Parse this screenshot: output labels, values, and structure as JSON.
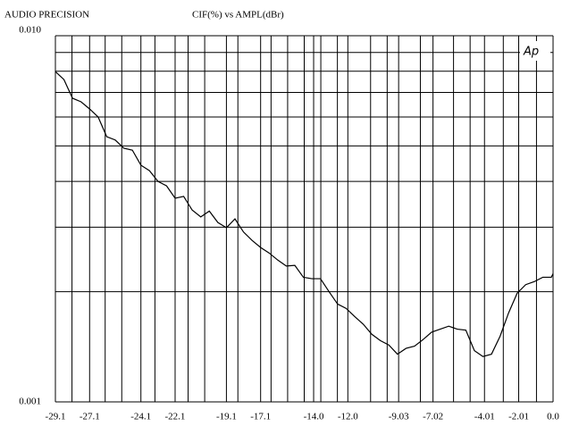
{
  "chart_data": {
    "type": "line",
    "title": "AUDIO PRECISION",
    "subtitle": "CIF(%)   vs   AMPL(dBr)",
    "logo": "Ap",
    "x": [
      -29.1,
      -28.6,
      -28.1,
      -27.6,
      -27.1,
      -26.6,
      -26.1,
      -25.6,
      -25.1,
      -24.6,
      -24.1,
      -23.6,
      -23.1,
      -22.6,
      -22.1,
      -21.6,
      -21.1,
      -20.6,
      -20.1,
      -19.6,
      -19.1,
      -18.6,
      -18.1,
      -17.6,
      -17.1,
      -16.6,
      -16.1,
      -15.6,
      -15.1,
      -14.6,
      -14.1,
      -13.6,
      -13.1,
      -12.6,
      -12.1,
      -11.6,
      -11.1,
      -10.6,
      -10.1,
      -9.6,
      -9.1,
      -8.6,
      -8.1,
      -7.6,
      -7.1,
      -6.6,
      -6.1,
      -5.6,
      -5.1,
      -4.6,
      -4.1,
      -3.6,
      -3.1,
      -2.6,
      -2.1,
      -1.6,
      -1.1,
      -0.6,
      -0.1,
      0.0
    ],
    "series": [
      {
        "color": "#000000",
        "values": [
          0.00798,
          0.00759,
          0.00675,
          0.0066,
          0.00631,
          0.006,
          0.0053,
          0.00519,
          0.00493,
          0.00487,
          0.00443,
          0.00428,
          0.004,
          0.00389,
          0.0036,
          0.00364,
          0.00334,
          0.0032,
          0.00332,
          0.00309,
          0.00299,
          0.00316,
          0.00291,
          0.00276,
          0.00264,
          0.00255,
          0.00244,
          0.00235,
          0.00236,
          0.00219,
          0.00217,
          0.00217,
          0.002,
          0.00185,
          0.0018,
          0.00171,
          0.00163,
          0.00153,
          0.00147,
          0.00143,
          0.00135,
          0.0014,
          0.00142,
          0.00148,
          0.00155,
          0.00158,
          0.00161,
          0.00158,
          0.00157,
          0.00138,
          0.00133,
          0.00135,
          0.00151,
          0.00175,
          0.00198,
          0.00209,
          0.00213,
          0.00219,
          0.00219,
          0.00224
        ]
      }
    ],
    "xlim": [
      -29.1,
      0
    ],
    "xticks": [
      -29.1,
      -27.1,
      -24.1,
      -22.1,
      -19.1,
      -17.1,
      {
        "value": -14,
        "label": "-14.0"
      },
      {
        "value": -12,
        "label": "-12.0"
      },
      -9.03,
      -7.02,
      -4.01,
      -2.01,
      {
        "value": 0,
        "label": "0.0"
      }
    ],
    "ylim": [
      0.001,
      0.01
    ],
    "yticks": [
      {
        "value": 0.001,
        "label": "0.001"
      },
      {
        "value": 0.01,
        "label": "0.010"
      }
    ],
    "ylog": true,
    "grid": true
  }
}
